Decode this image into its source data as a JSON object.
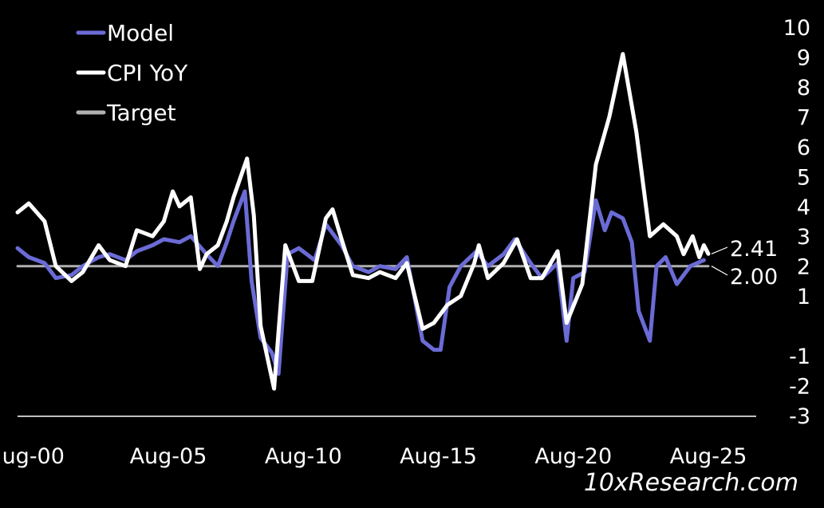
{
  "chart_data": {
    "type": "line",
    "title": "",
    "xlabel": "",
    "ylabel": "",
    "ylim": [
      -3,
      10
    ],
    "xlim": [
      "Jan-00",
      "Dec-25"
    ],
    "y_ticks": [
      "-3",
      "-2",
      "-1",
      "1",
      "2",
      "3",
      "4",
      "5",
      "6",
      "7",
      "8",
      "9",
      "10"
    ],
    "x_ticks": [
      {
        "label": "ug-00",
        "date": "2000-08"
      },
      {
        "label": "Aug-05",
        "date": "2005-08"
      },
      {
        "label": "Aug-10",
        "date": "2010-08"
      },
      {
        "label": "Aug-15",
        "date": "2015-08"
      },
      {
        "label": "Aug-20",
        "date": "2020-08"
      },
      {
        "label": "Aug-25",
        "date": "2025-08"
      }
    ],
    "axis_side": "right",
    "grid": false,
    "legend_position": "top-left",
    "series": [
      {
        "name": "Model",
        "color": "#6b6bd6",
        "points": [
          [
            "2000-01",
            2.6
          ],
          [
            "2000-06",
            2.3
          ],
          [
            "2001-01",
            2.1
          ],
          [
            "2001-06",
            1.6
          ],
          [
            "2002-01",
            1.7
          ],
          [
            "2002-06",
            2.0
          ],
          [
            "2003-01",
            2.3
          ],
          [
            "2003-06",
            2.4
          ],
          [
            "2004-01",
            2.2
          ],
          [
            "2004-06",
            2.5
          ],
          [
            "2005-01",
            2.7
          ],
          [
            "2005-06",
            2.9
          ],
          [
            "2006-01",
            2.8
          ],
          [
            "2006-06",
            3.0
          ],
          [
            "2007-01",
            2.4
          ],
          [
            "2007-06",
            2.0
          ],
          [
            "2007-10",
            2.8
          ],
          [
            "2008-01",
            3.5
          ],
          [
            "2008-06",
            4.5
          ],
          [
            "2008-09",
            1.5
          ],
          [
            "2009-01",
            -0.4
          ],
          [
            "2009-06",
            -0.9
          ],
          [
            "2009-09",
            -1.6
          ],
          [
            "2010-01",
            2.4
          ],
          [
            "2010-06",
            2.6
          ],
          [
            "2011-01",
            2.2
          ],
          [
            "2011-06",
            3.4
          ],
          [
            "2012-01",
            2.7
          ],
          [
            "2012-06",
            2.0
          ],
          [
            "2013-01",
            1.8
          ],
          [
            "2013-06",
            2.0
          ],
          [
            "2014-01",
            1.9
          ],
          [
            "2014-06",
            2.3
          ],
          [
            "2015-01",
            -0.5
          ],
          [
            "2015-06",
            -0.8
          ],
          [
            "2015-09",
            -0.8
          ],
          [
            "2016-01",
            1.3
          ],
          [
            "2016-06",
            2.0
          ],
          [
            "2017-01",
            2.5
          ],
          [
            "2017-06",
            2.0
          ],
          [
            "2018-01",
            2.4
          ],
          [
            "2018-06",
            2.9
          ],
          [
            "2019-01",
            2.1
          ],
          [
            "2019-06",
            1.6
          ],
          [
            "2020-01",
            2.1
          ],
          [
            "2020-05",
            -0.5
          ],
          [
            "2020-08",
            1.6
          ],
          [
            "2021-01",
            1.8
          ],
          [
            "2021-06",
            4.2
          ],
          [
            "2021-10",
            3.2
          ],
          [
            "2022-01",
            3.8
          ],
          [
            "2022-06",
            3.6
          ],
          [
            "2022-10",
            2.8
          ],
          [
            "2023-01",
            0.5
          ],
          [
            "2023-06",
            -0.5
          ],
          [
            "2023-09",
            2.0
          ],
          [
            "2024-01",
            2.3
          ],
          [
            "2024-06",
            1.4
          ],
          [
            "2024-12",
            2.0
          ],
          [
            "2025-06",
            2.2
          ]
        ]
      },
      {
        "name": "CPI YoY",
        "color": "#ffffff",
        "points": [
          [
            "2000-01",
            3.8
          ],
          [
            "2000-06",
            4.1
          ],
          [
            "2001-01",
            3.5
          ],
          [
            "2001-06",
            2.0
          ],
          [
            "2002-01",
            1.5
          ],
          [
            "2002-06",
            1.8
          ],
          [
            "2003-01",
            2.7
          ],
          [
            "2003-06",
            2.2
          ],
          [
            "2004-01",
            2.0
          ],
          [
            "2004-06",
            3.2
          ],
          [
            "2005-01",
            3.0
          ],
          [
            "2005-06",
            3.5
          ],
          [
            "2005-10",
            4.5
          ],
          [
            "2006-01",
            4.0
          ],
          [
            "2006-06",
            4.3
          ],
          [
            "2006-10",
            1.9
          ],
          [
            "2007-01",
            2.4
          ],
          [
            "2007-06",
            2.7
          ],
          [
            "2007-10",
            3.5
          ],
          [
            "2008-01",
            4.3
          ],
          [
            "2008-07",
            5.6
          ],
          [
            "2008-10",
            3.7
          ],
          [
            "2009-01",
            0.0
          ],
          [
            "2009-07",
            -2.1
          ],
          [
            "2009-12",
            2.7
          ],
          [
            "2010-06",
            1.5
          ],
          [
            "2010-12",
            1.5
          ],
          [
            "2011-06",
            3.6
          ],
          [
            "2011-09",
            3.9
          ],
          [
            "2012-01",
            2.9
          ],
          [
            "2012-06",
            1.7
          ],
          [
            "2013-01",
            1.6
          ],
          [
            "2013-06",
            1.8
          ],
          [
            "2014-01",
            1.6
          ],
          [
            "2014-06",
            2.1
          ],
          [
            "2015-01",
            -0.1
          ],
          [
            "2015-06",
            0.1
          ],
          [
            "2015-12",
            0.7
          ],
          [
            "2016-06",
            1.0
          ],
          [
            "2016-12",
            2.1
          ],
          [
            "2017-02",
            2.7
          ],
          [
            "2017-06",
            1.6
          ],
          [
            "2018-01",
            2.1
          ],
          [
            "2018-07",
            2.9
          ],
          [
            "2019-01",
            1.6
          ],
          [
            "2019-06",
            1.6
          ],
          [
            "2020-01",
            2.5
          ],
          [
            "2020-05",
            0.1
          ],
          [
            "2020-12",
            1.4
          ],
          [
            "2021-06",
            5.4
          ],
          [
            "2021-12",
            7.0
          ],
          [
            "2022-06",
            9.1
          ],
          [
            "2022-12",
            6.5
          ],
          [
            "2023-06",
            3.0
          ],
          [
            "2023-12",
            3.4
          ],
          [
            "2024-06",
            3.0
          ],
          [
            "2024-09",
            2.4
          ],
          [
            "2025-01",
            3.0
          ],
          [
            "2025-04",
            2.3
          ],
          [
            "2025-06",
            2.7
          ],
          [
            "2025-08",
            2.41
          ]
        ]
      },
      {
        "name": "Target",
        "color": "#b0b0b0",
        "points": [
          [
            "2000-01",
            2.0
          ],
          [
            "2025-08",
            2.0
          ]
        ]
      }
    ],
    "end_labels": [
      {
        "series": "CPI YoY",
        "label": "2.41"
      },
      {
        "series": "Target",
        "label": "2.00"
      }
    ]
  },
  "watermark": "10xResearch.com"
}
